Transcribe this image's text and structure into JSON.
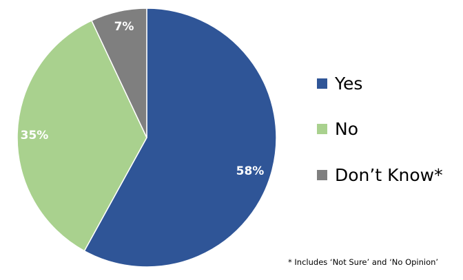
{
  "chart_data": {
    "type": "pie",
    "categories": [
      "Yes",
      "No",
      "Don’t Know*"
    ],
    "values": [
      58,
      35,
      7
    ],
    "data_labels": [
      "58%",
      "35%",
      "7%"
    ],
    "colors": [
      "#2F5597",
      "#A9D18E",
      "#7F7F7F"
    ],
    "start": "top, clockwise",
    "legend_placement": "right",
    "footnote": "* Includes ‘Not Sure’ and ‘No Opinion’"
  }
}
